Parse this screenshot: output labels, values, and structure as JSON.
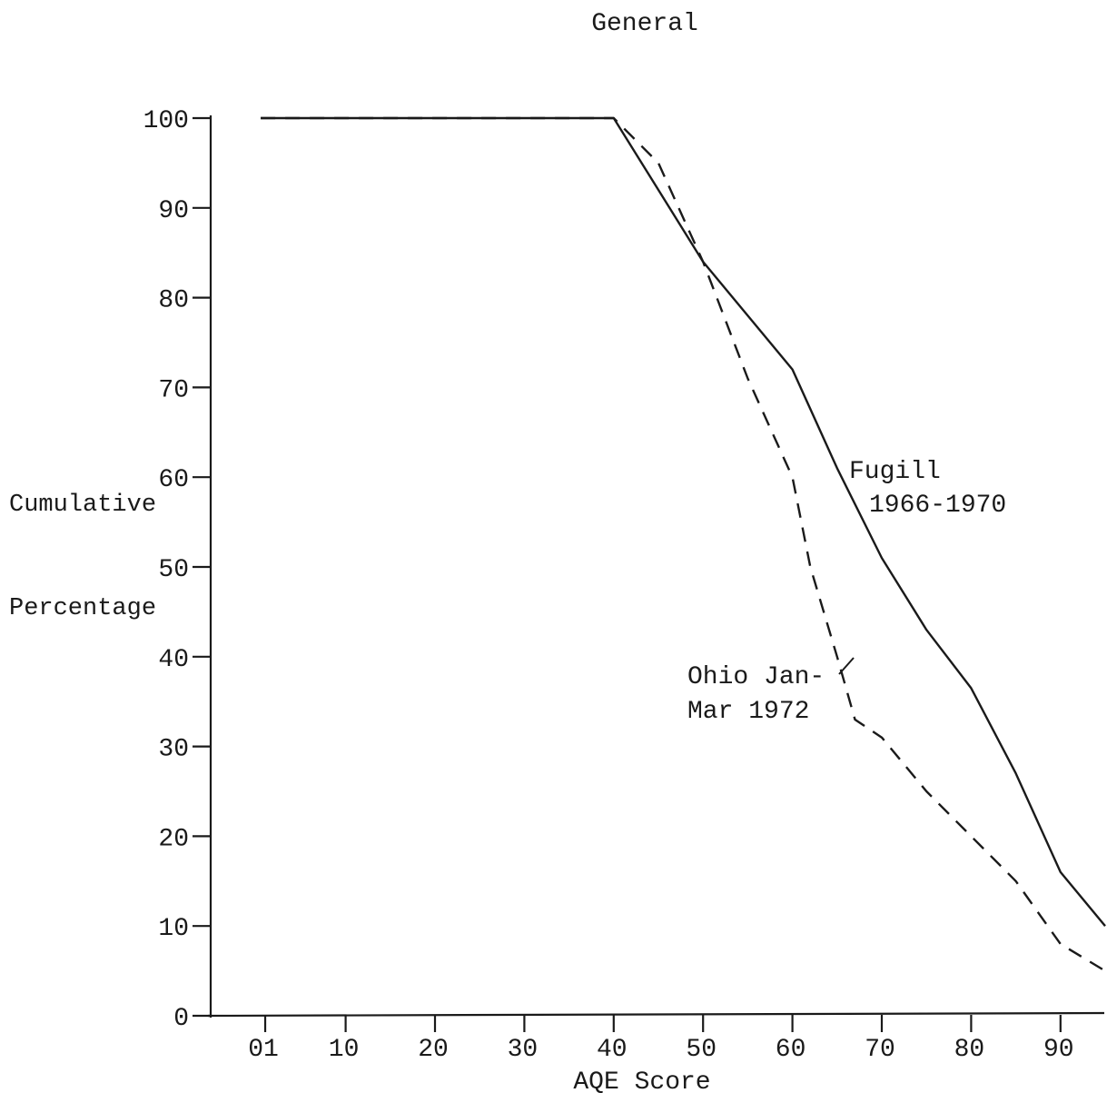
{
  "chart_data": {
    "type": "line",
    "title": "General",
    "xlabel": "AQE Score",
    "ylabel": [
      "Cumulative",
      "Percentage"
    ],
    "xlim": [
      -5,
      95
    ],
    "ylim": [
      0,
      100
    ],
    "x_ticks": [
      {
        "value": 1,
        "label": "01"
      },
      {
        "value": 10,
        "label": "10"
      },
      {
        "value": 20,
        "label": "20"
      },
      {
        "value": 30,
        "label": "30"
      },
      {
        "value": 40,
        "label": "40"
      },
      {
        "value": 50,
        "label": "50"
      },
      {
        "value": 60,
        "label": "60"
      },
      {
        "value": 70,
        "label": "70"
      },
      {
        "value": 80,
        "label": "80"
      },
      {
        "value": 90,
        "label": "90"
      }
    ],
    "y_ticks": [
      {
        "value": 0,
        "label": "0"
      },
      {
        "value": 10,
        "label": "10"
      },
      {
        "value": 20,
        "label": "20"
      },
      {
        "value": 30,
        "label": "30"
      },
      {
        "value": 40,
        "label": "40"
      },
      {
        "value": 50,
        "label": "50"
      },
      {
        "value": 60,
        "label": "60"
      },
      {
        "value": 70,
        "label": "70"
      },
      {
        "value": 80,
        "label": "80"
      },
      {
        "value": 90,
        "label": "90"
      },
      {
        "value": 100,
        "label": "100"
      }
    ],
    "grid": false,
    "series": [
      {
        "name": "Fugill 1966-1970",
        "label_lines": [
          "Fugill",
          "1966-1970"
        ],
        "style": "solid",
        "x": [
          0.5,
          40,
          45,
          50,
          55,
          60,
          65,
          70,
          75,
          80,
          85,
          90,
          95
        ],
        "y": [
          100,
          100,
          92,
          84,
          78,
          72,
          61,
          51,
          43,
          36.5,
          27,
          16,
          10
        ]
      },
      {
        "name": "Ohio Jan-Mar 1972",
        "label_lines": [
          "Ohio Jan-",
          "Mar 1972"
        ],
        "style": "dashed",
        "x": [
          0.5,
          40,
          45,
          50,
          55,
          60,
          62,
          65,
          67,
          70,
          75,
          80,
          85,
          90,
          95
        ],
        "y": [
          100,
          100,
          95,
          84,
          71,
          60,
          50,
          40,
          33,
          31,
          25,
          20,
          15,
          8,
          5
        ]
      }
    ]
  }
}
